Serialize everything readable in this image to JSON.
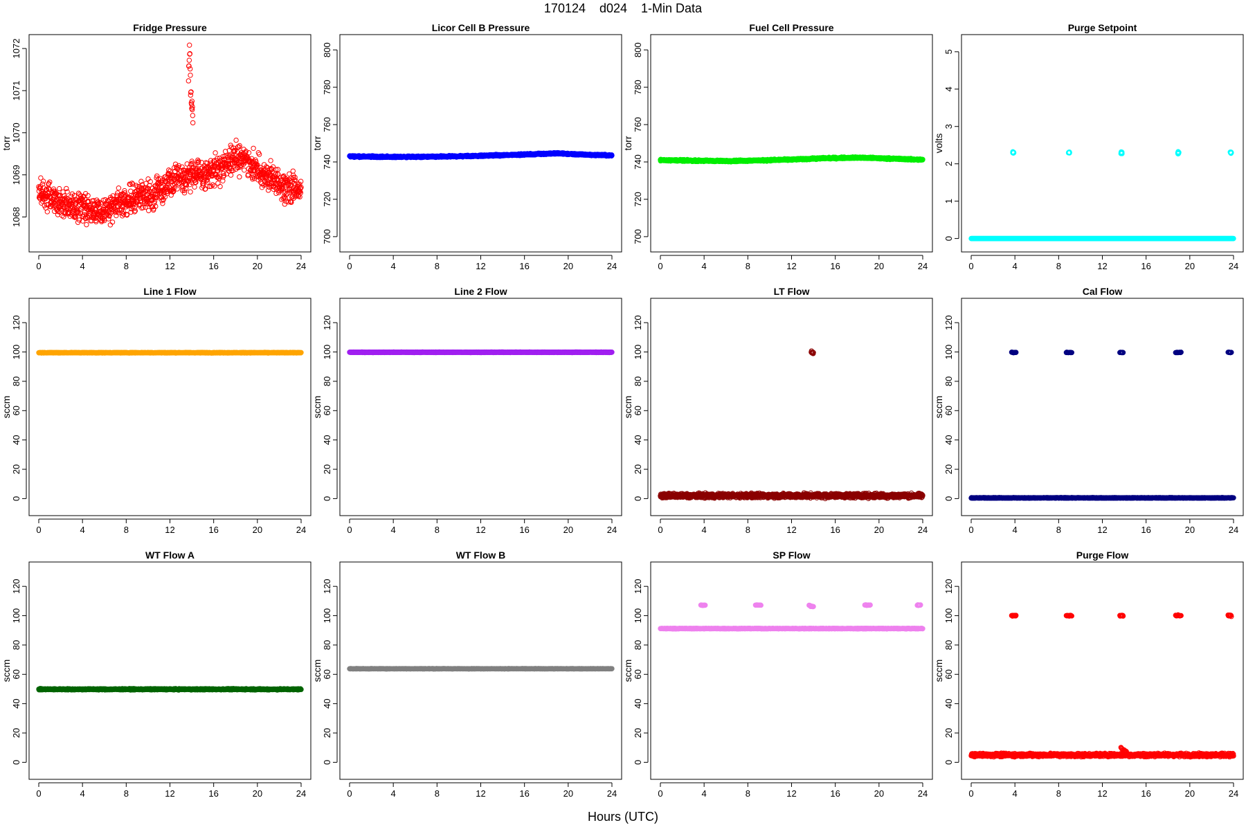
{
  "figure": {
    "title": "170124    d024    1-Min Data",
    "xlabel": "Hours (UTC)"
  },
  "chart_data": [
    {
      "type": "scatter",
      "title": "Fridge Pressure",
      "xlabel": "",
      "ylabel": "torr",
      "color": "#ff0000",
      "pch": "open-circle",
      "xlim": [
        0,
        24
      ],
      "ylim": [
        1067.4,
        1072.1
      ],
      "xticks": [
        0,
        4,
        8,
        12,
        16,
        20,
        24
      ],
      "yticks": [
        1068,
        1069,
        1070,
        1071,
        1072
      ],
      "series": [
        {
          "x": [
            0,
            1,
            2,
            3,
            4,
            5,
            6,
            7,
            8,
            9,
            10,
            11,
            12,
            13,
            14,
            15,
            16,
            17,
            18,
            19,
            20,
            21,
            22,
            23,
            24
          ],
          "y": [
            1068.6,
            1068.5,
            1068.3,
            1068.3,
            1068.2,
            1068.2,
            1068.1,
            1068.3,
            1068.4,
            1068.5,
            1068.5,
            1068.6,
            1068.8,
            1068.9,
            1069.0,
            1069.0,
            1069.1,
            1069.2,
            1069.4,
            1069.4,
            1069.1,
            1068.9,
            1068.8,
            1068.7,
            1068.6
          ],
          "spread": 0.5,
          "n": 1200
        },
        {
          "x": [
            13.7,
            13.8,
            13.9,
            14.0,
            14.1
          ],
          "y": [
            1071.4,
            1072.0,
            1071.0,
            1070.7,
            1070.4
          ],
          "spread": 0.3,
          "n": 20
        }
      ]
    },
    {
      "type": "scatter",
      "title": "Licor Cell B Pressure",
      "xlabel": "",
      "ylabel": "torr",
      "color": "#0000ff",
      "pch": "open-circle",
      "xlim": [
        0,
        24
      ],
      "ylim": [
        697,
        803
      ],
      "xticks": [
        0,
        4,
        8,
        12,
        16,
        20,
        24
      ],
      "yticks": [
        700,
        720,
        740,
        760,
        780,
        800
      ],
      "series": [
        {
          "x": [
            0,
            4,
            8,
            12,
            16,
            19,
            21,
            24
          ],
          "y": [
            743,
            742.7,
            742.8,
            743.3,
            744,
            744.6,
            744,
            743.5
          ],
          "spread": 0.6,
          "n": 1440
        }
      ]
    },
    {
      "type": "scatter",
      "title": "Fuel Cell Pressure",
      "xlabel": "",
      "ylabel": "torr",
      "color": "#00ee00",
      "pch": "open-circle",
      "xlim": [
        0,
        24
      ],
      "ylim": [
        697,
        803
      ],
      "xticks": [
        0,
        4,
        8,
        12,
        16,
        20,
        24
      ],
      "yticks": [
        700,
        720,
        740,
        760,
        780,
        800
      ],
      "series": [
        {
          "x": [
            0,
            3,
            6,
            9,
            12,
            15,
            18,
            21,
            24
          ],
          "y": [
            741,
            740.7,
            740.5,
            740.8,
            741.3,
            742,
            742.3,
            741.8,
            741.2
          ],
          "spread": 0.6,
          "n": 1440
        }
      ]
    },
    {
      "type": "scatter",
      "title": "Purge Setpoint",
      "xlabel": "",
      "ylabel": "volts",
      "color": "#00ffff",
      "pch": "open-circle",
      "xlim": [
        0,
        24
      ],
      "ylim": [
        -0.1,
        5.2
      ],
      "xticks": [
        0,
        4,
        8,
        12,
        16,
        20,
        24
      ],
      "yticks": [
        0,
        1,
        2,
        3,
        4,
        5
      ],
      "series": [
        {
          "x": [
            0,
            24
          ],
          "y": [
            0,
            0
          ],
          "spread": 0,
          "n": 1440
        },
        {
          "x": [
            3.8,
            3.9
          ],
          "y": [
            2.3,
            2.3
          ],
          "spread": 0.04,
          "n": 10
        },
        {
          "x": [
            8.9,
            9.0
          ],
          "y": [
            2.3,
            2.3
          ],
          "spread": 0.04,
          "n": 10
        },
        {
          "x": [
            13.7,
            13.8
          ],
          "y": [
            2.3,
            2.3
          ],
          "spread": 0.04,
          "n": 10
        },
        {
          "x": [
            18.9,
            19.0
          ],
          "y": [
            2.3,
            2.3
          ],
          "spread": 0.04,
          "n": 10
        },
        {
          "x": [
            23.7,
            23.8
          ],
          "y": [
            2.3,
            2.3
          ],
          "spread": 0.04,
          "n": 10
        }
      ]
    },
    {
      "type": "scatter",
      "title": "Line 1 Flow",
      "xlabel": "",
      "ylabel": "sccm",
      "color": "#ffa500",
      "pch": "open-circle",
      "xlim": [
        0,
        24
      ],
      "ylim": [
        -5,
        130
      ],
      "xticks": [
        0,
        4,
        8,
        12,
        16,
        20,
        24
      ],
      "yticks": [
        0,
        20,
        40,
        60,
        80,
        100,
        120
      ],
      "series": [
        {
          "x": [
            0,
            24
          ],
          "y": [
            99.5,
            99.5
          ],
          "spread": 0.3,
          "n": 1440
        }
      ]
    },
    {
      "type": "scatter",
      "title": "Line 2 Flow",
      "xlabel": "",
      "ylabel": "sccm",
      "color": "#a020f0",
      "pch": "open-circle",
      "xlim": [
        0,
        24
      ],
      "ylim": [
        -5,
        130
      ],
      "xticks": [
        0,
        4,
        8,
        12,
        16,
        20,
        24
      ],
      "yticks": [
        0,
        20,
        40,
        60,
        80,
        100,
        120
      ],
      "series": [
        {
          "x": [
            0,
            24
          ],
          "y": [
            99.8,
            99.8
          ],
          "spread": 0.3,
          "n": 1440
        }
      ]
    },
    {
      "type": "scatter",
      "title": "LT Flow",
      "xlabel": "",
      "ylabel": "sccm",
      "color": "#8b0000",
      "pch": "open-circle",
      "xlim": [
        0,
        24
      ],
      "ylim": [
        -5,
        130
      ],
      "xticks": [
        0,
        4,
        8,
        12,
        16,
        20,
        24
      ],
      "yticks": [
        0,
        20,
        40,
        60,
        80,
        100,
        120
      ],
      "series": [
        {
          "x": [
            0,
            24
          ],
          "y": [
            2,
            2
          ],
          "spread": 2.2,
          "n": 1440
        },
        {
          "x": [
            13.8,
            14.0
          ],
          "y": [
            99.5,
            99.5
          ],
          "spread": 2,
          "n": 10
        }
      ]
    },
    {
      "type": "scatter",
      "title": "Cal Flow",
      "xlabel": "",
      "ylabel": "sccm",
      "color": "#000080",
      "pch": "open-circle",
      "xlim": [
        0,
        24
      ],
      "ylim": [
        -5,
        130
      ],
      "xticks": [
        0,
        4,
        8,
        12,
        16,
        20,
        24
      ],
      "yticks": [
        0,
        20,
        40,
        60,
        80,
        100,
        120
      ],
      "series": [
        {
          "x": [
            0,
            24
          ],
          "y": [
            0.5,
            0.5
          ],
          "spread": 0.3,
          "n": 1440
        },
        {
          "x": [
            3.7,
            4.1
          ],
          "y": [
            99.7,
            99.7
          ],
          "spread": 0.3,
          "n": 12
        },
        {
          "x": [
            8.7,
            9.2
          ],
          "y": [
            99.7,
            99.7
          ],
          "spread": 0.3,
          "n": 12
        },
        {
          "x": [
            13.6,
            13.9
          ],
          "y": [
            99.7,
            99.7
          ],
          "spread": 0.3,
          "n": 12
        },
        {
          "x": [
            18.7,
            19.2
          ],
          "y": [
            99.7,
            99.7
          ],
          "spread": 0.3,
          "n": 12
        },
        {
          "x": [
            23.5,
            23.8
          ],
          "y": [
            99.7,
            99.7
          ],
          "spread": 0.3,
          "n": 12
        }
      ]
    },
    {
      "type": "scatter",
      "title": "WT Flow A",
      "xlabel": "",
      "ylabel": "sccm",
      "color": "#006400",
      "pch": "open-circle",
      "xlim": [
        0,
        24
      ],
      "ylim": [
        -5,
        130
      ],
      "xticks": [
        0,
        4,
        8,
        12,
        16,
        20,
        24
      ],
      "yticks": [
        0,
        20,
        40,
        60,
        80,
        100,
        120
      ],
      "series": [
        {
          "x": [
            0,
            24
          ],
          "y": [
            49.8,
            49.8
          ],
          "spread": 0.6,
          "n": 1440
        }
      ]
    },
    {
      "type": "scatter",
      "title": "WT Flow B",
      "xlabel": "",
      "ylabel": "sccm",
      "color": "#808080",
      "pch": "open-circle",
      "xlim": [
        0,
        24
      ],
      "ylim": [
        -5,
        130
      ],
      "xticks": [
        0,
        4,
        8,
        12,
        16,
        20,
        24
      ],
      "yticks": [
        0,
        20,
        40,
        60,
        80,
        100,
        120
      ],
      "series": [
        {
          "x": [
            0,
            24
          ],
          "y": [
            63.8,
            63.8
          ],
          "spread": 0.2,
          "n": 1440
        }
      ]
    },
    {
      "type": "scatter",
      "title": "SP Flow",
      "xlabel": "",
      "ylabel": "sccm",
      "color": "#ee82ee",
      "pch": "open-circle",
      "xlim": [
        0,
        24
      ],
      "ylim": [
        -5,
        130
      ],
      "xticks": [
        0,
        4,
        8,
        12,
        16,
        20,
        24
      ],
      "yticks": [
        0,
        20,
        40,
        60,
        80,
        100,
        120
      ],
      "series": [
        {
          "x": [
            0,
            24
          ],
          "y": [
            91.2,
            91.2
          ],
          "spread": 0.3,
          "n": 1440
        },
        {
          "x": [
            3.7,
            4.1
          ],
          "y": [
            107.2,
            107.2
          ],
          "spread": 0.3,
          "n": 12
        },
        {
          "x": [
            8.7,
            9.2
          ],
          "y": [
            107.2,
            107.2
          ],
          "spread": 0.3,
          "n": 12
        },
        {
          "x": [
            13.6,
            14.0
          ],
          "y": [
            107.0,
            106.0
          ],
          "spread": 0.4,
          "n": 12
        },
        {
          "x": [
            18.7,
            19.2
          ],
          "y": [
            107.2,
            107.2
          ],
          "spread": 0.3,
          "n": 12
        },
        {
          "x": [
            23.5,
            23.8
          ],
          "y": [
            107.2,
            107.2
          ],
          "spread": 0.3,
          "n": 12
        }
      ]
    },
    {
      "type": "scatter",
      "title": "Purge Flow",
      "xlabel": "",
      "ylabel": "sccm",
      "color": "#ff0000",
      "pch": "open-circle",
      "xlim": [
        0,
        24
      ],
      "ylim": [
        -5,
        130
      ],
      "xticks": [
        0,
        4,
        8,
        12,
        16,
        20,
        24
      ],
      "yticks": [
        0,
        20,
        40,
        60,
        80,
        100,
        120
      ],
      "series": [
        {
          "x": [
            0,
            24
          ],
          "y": [
            5,
            5
          ],
          "spread": 1.6,
          "n": 1440
        },
        {
          "x": [
            13.7,
            14.2
          ],
          "y": [
            9.5,
            7
          ],
          "spread": 1.2,
          "n": 15
        },
        {
          "x": [
            3.7,
            4.1
          ],
          "y": [
            100,
            100
          ],
          "spread": 0.6,
          "n": 12
        },
        {
          "x": [
            8.7,
            9.2
          ],
          "y": [
            100,
            100
          ],
          "spread": 0.6,
          "n": 12
        },
        {
          "x": [
            13.6,
            13.9
          ],
          "y": [
            100,
            100
          ],
          "spread": 0.6,
          "n": 12
        },
        {
          "x": [
            18.7,
            19.2
          ],
          "y": [
            100,
            100
          ],
          "spread": 0.6,
          "n": 12
        },
        {
          "x": [
            23.5,
            23.8
          ],
          "y": [
            100,
            100
          ],
          "spread": 0.6,
          "n": 12
        }
      ]
    }
  ]
}
